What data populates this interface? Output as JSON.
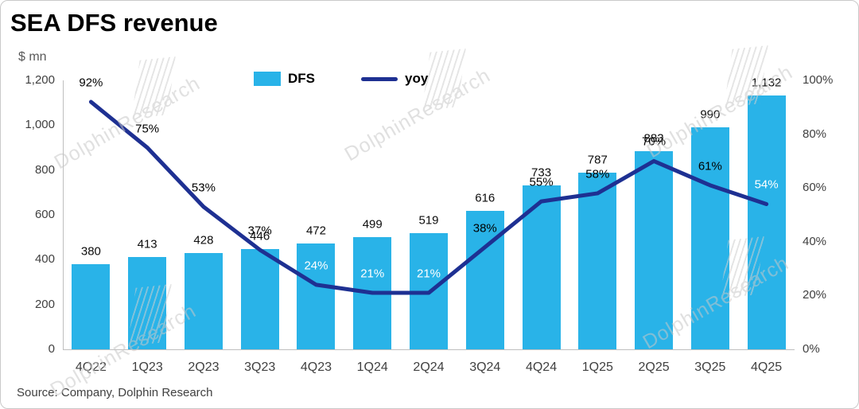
{
  "page": {
    "title": "SEA DFS revenue",
    "unit_label": "$ mn",
    "source": "Source: Company, Dolphin Research",
    "watermark": "DolphinResearch"
  },
  "legend": {
    "bar_label": "DFS",
    "line_label": "yoy"
  },
  "colors": {
    "bar": "#29b3e8",
    "line": "#1e3092",
    "axis_text": "#404040",
    "watermark": "#c8c8c8",
    "axis_line": "#bfbfbf"
  },
  "chart_data": {
    "type": "bar",
    "title": "SEA DFS revenue",
    "ylabel_left": "$ mn",
    "categories": [
      "4Q22",
      "1Q23",
      "2Q23",
      "3Q23",
      "4Q23",
      "1Q24",
      "2Q24",
      "3Q24",
      "4Q24",
      "1Q25",
      "2Q25",
      "3Q25",
      "4Q25"
    ],
    "series": [
      {
        "name": "DFS",
        "type": "bar",
        "axis": "left",
        "values": [
          380,
          413,
          428,
          446,
          472,
          499,
          519,
          616,
          733,
          787,
          883,
          990,
          1132
        ],
        "labels": [
          "380",
          "413",
          "428",
          "446",
          "472",
          "499",
          "519",
          "616",
          "733",
          "787",
          "883",
          "990",
          "1,132"
        ]
      },
      {
        "name": "yoy",
        "type": "line",
        "axis": "right",
        "values": [
          92,
          75,
          53,
          37,
          24,
          21,
          21,
          38,
          55,
          58,
          70,
          61,
          54
        ],
        "labels": [
          "92%",
          "75%",
          "53%",
          "37%",
          "24%",
          "21%",
          "21%",
          "38%",
          "55%",
          "58%",
          "70%",
          "61%",
          "54%"
        ],
        "label_colors": [
          "#000000",
          "#000000",
          "#000000",
          "#000000",
          "#ffffff",
          "#ffffff",
          "#ffffff",
          "#000000",
          "#000000",
          "#000000",
          "#000000",
          "#000000",
          "#ffffff"
        ]
      }
    ],
    "left_axis": {
      "min": 0,
      "max": 1200,
      "tick_values": [
        0,
        200,
        400,
        600,
        800,
        1000,
        1200
      ],
      "tick_labels": [
        "0",
        "200",
        "400",
        "600",
        "800",
        "1,000",
        "1,200"
      ]
    },
    "right_axis": {
      "min": 0,
      "max": 100,
      "tick_values": [
        0,
        20,
        40,
        60,
        80,
        100
      ],
      "tick_labels": [
        "0%",
        "20%",
        "40%",
        "60%",
        "80%",
        "100%"
      ]
    },
    "grid": false,
    "legend_position": "top-center"
  }
}
